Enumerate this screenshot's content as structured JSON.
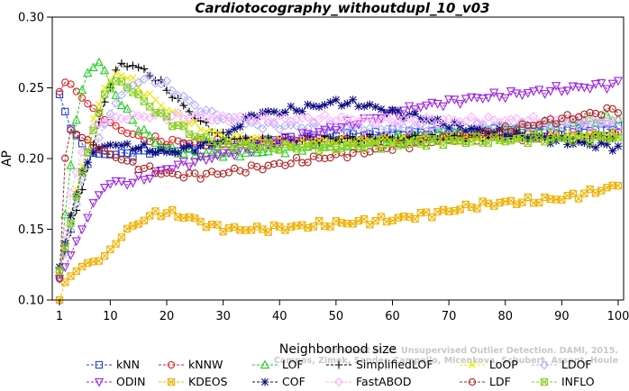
{
  "chart_data": {
    "type": "line",
    "title": "Cardiotocography_withoutdupl_10_v03",
    "xlabel": "Neighborhood size",
    "ylabel": "AP",
    "xlim": [
      1,
      100
    ],
    "ylim": [
      0.1,
      0.3
    ],
    "xticks": [
      1,
      10,
      20,
      30,
      40,
      50,
      60,
      70,
      80,
      90,
      100
    ],
    "yticks": [
      0.1,
      0.15,
      0.2,
      0.25,
      0.3
    ],
    "ytick_labels": [
      "0.10",
      "0.15",
      "0.20",
      "0.25",
      "0.30"
    ],
    "grid": false,
    "legend_position": "bottom",
    "watermark": [
      "Schubert et al. Unsupervised Outlier Detection. DAMI, 2015.",
      "Campos, Zimek, Sander, Campello, Micenkova, Schubert, Assent, Houle"
    ],
    "series": [
      {
        "name": "kNN",
        "color": "#1f3fd8",
        "marker": "square",
        "knots": [
          [
            1,
            0.245
          ],
          [
            2,
            0.233
          ],
          [
            3,
            0.222
          ],
          [
            5,
            0.21
          ],
          [
            6,
            0.205
          ],
          [
            8,
            0.203
          ],
          [
            10,
            0.203
          ],
          [
            15,
            0.204
          ],
          [
            20,
            0.206
          ],
          [
            30,
            0.21
          ],
          [
            40,
            0.213
          ],
          [
            50,
            0.216
          ],
          [
            60,
            0.218
          ],
          [
            70,
            0.219
          ],
          [
            80,
            0.22
          ],
          [
            90,
            0.221
          ],
          [
            100,
            0.222
          ]
        ]
      },
      {
        "name": "kNNW",
        "color": "#e02020",
        "marker": "circle",
        "knots": [
          [
            1,
            0.248
          ],
          [
            2,
            0.254
          ],
          [
            3,
            0.252
          ],
          [
            5,
            0.243
          ],
          [
            7,
            0.235
          ],
          [
            10,
            0.225
          ],
          [
            13,
            0.218
          ],
          [
            16,
            0.214
          ],
          [
            20,
            0.212
          ],
          [
            30,
            0.211
          ],
          [
            40,
            0.212
          ],
          [
            50,
            0.213
          ],
          [
            60,
            0.214
          ],
          [
            70,
            0.215
          ],
          [
            80,
            0.215
          ],
          [
            90,
            0.216
          ],
          [
            100,
            0.217
          ]
        ]
      },
      {
        "name": "LOF",
        "color": "#22cc22",
        "marker": "triangle-up",
        "knots": [
          [
            1,
            0.118
          ],
          [
            2,
            0.16
          ],
          [
            3,
            0.195
          ],
          [
            4,
            0.228
          ],
          [
            5,
            0.248
          ],
          [
            6,
            0.26
          ],
          [
            7,
            0.265
          ],
          [
            8,
            0.268
          ],
          [
            9,
            0.262
          ],
          [
            10,
            0.252
          ],
          [
            12,
            0.238
          ],
          [
            15,
            0.222
          ],
          [
            18,
            0.212
          ],
          [
            20,
            0.207
          ],
          [
            25,
            0.203
          ],
          [
            30,
            0.203
          ],
          [
            40,
            0.206
          ],
          [
            50,
            0.21
          ],
          [
            60,
            0.214
          ],
          [
            70,
            0.218
          ],
          [
            80,
            0.221
          ],
          [
            90,
            0.225
          ],
          [
            100,
            0.229
          ]
        ]
      },
      {
        "name": "SimplifiedLOF",
        "color": "#000000",
        "marker": "plus",
        "knots": [
          [
            1,
            0.122
          ],
          [
            3,
            0.148
          ],
          [
            5,
            0.178
          ],
          [
            7,
            0.21
          ],
          [
            9,
            0.24
          ],
          [
            11,
            0.262
          ],
          [
            12,
            0.267
          ],
          [
            14,
            0.266
          ],
          [
            17,
            0.26
          ],
          [
            20,
            0.249
          ],
          [
            23,
            0.237
          ],
          [
            26,
            0.226
          ],
          [
            30,
            0.216
          ],
          [
            35,
            0.213
          ],
          [
            40,
            0.213
          ],
          [
            50,
            0.214
          ],
          [
            60,
            0.214
          ],
          [
            70,
            0.215
          ],
          [
            80,
            0.215
          ],
          [
            90,
            0.215
          ],
          [
            100,
            0.216
          ]
        ]
      },
      {
        "name": "LoOP",
        "color": "#e8e800",
        "marker": "x",
        "knots": [
          [
            1,
            0.12
          ],
          [
            3,
            0.16
          ],
          [
            5,
            0.195
          ],
          [
            7,
            0.228
          ],
          [
            9,
            0.25
          ],
          [
            11,
            0.26
          ],
          [
            13,
            0.258
          ],
          [
            16,
            0.247
          ],
          [
            20,
            0.235
          ],
          [
            25,
            0.223
          ],
          [
            30,
            0.216
          ],
          [
            40,
            0.212
          ],
          [
            50,
            0.212
          ],
          [
            60,
            0.213
          ],
          [
            70,
            0.214
          ],
          [
            80,
            0.215
          ],
          [
            90,
            0.216
          ],
          [
            100,
            0.217
          ]
        ]
      },
      {
        "name": "LDOF",
        "color": "#b0b0ff",
        "marker": "diamond",
        "knots": [
          [
            1,
            0.115
          ],
          [
            3,
            0.15
          ],
          [
            5,
            0.185
          ],
          [
            8,
            0.215
          ],
          [
            11,
            0.24
          ],
          [
            14,
            0.253
          ],
          [
            17,
            0.257
          ],
          [
            20,
            0.252
          ],
          [
            23,
            0.243
          ],
          [
            26,
            0.235
          ],
          [
            30,
            0.228
          ],
          [
            35,
            0.224
          ],
          [
            40,
            0.223
          ],
          [
            50,
            0.222
          ],
          [
            60,
            0.222
          ],
          [
            70,
            0.222
          ],
          [
            80,
            0.223
          ],
          [
            90,
            0.223
          ],
          [
            100,
            0.224
          ]
        ]
      },
      {
        "name": "ODIN",
        "color": "#9b22e0",
        "marker": "triangle-down",
        "knots": [
          [
            1,
            0.115
          ],
          [
            3,
            0.132
          ],
          [
            5,
            0.15
          ],
          [
            7,
            0.168
          ],
          [
            9,
            0.18
          ],
          [
            11,
            0.184
          ],
          [
            13,
            0.183
          ],
          [
            16,
            0.186
          ],
          [
            20,
            0.193
          ],
          [
            25,
            0.198
          ],
          [
            30,
            0.203
          ],
          [
            35,
            0.207
          ],
          [
            40,
            0.212
          ],
          [
            45,
            0.217
          ],
          [
            50,
            0.222
          ],
          [
            55,
            0.227
          ],
          [
            60,
            0.232
          ],
          [
            65,
            0.237
          ],
          [
            70,
            0.24
          ],
          [
            75,
            0.243
          ],
          [
            80,
            0.245
          ],
          [
            85,
            0.247
          ],
          [
            90,
            0.249
          ],
          [
            95,
            0.251
          ],
          [
            100,
            0.253
          ]
        ]
      },
      {
        "name": "KDEOS",
        "color": "#f0b000",
        "marker": "square-x",
        "knots": [
          [
            1,
            0.1
          ],
          [
            2,
            0.112
          ],
          [
            4,
            0.121
          ],
          [
            6,
            0.126
          ],
          [
            8,
            0.128
          ],
          [
            10,
            0.135
          ],
          [
            12,
            0.145
          ],
          [
            14,
            0.152
          ],
          [
            16,
            0.157
          ],
          [
            18,
            0.161
          ],
          [
            20,
            0.162
          ],
          [
            22,
            0.16
          ],
          [
            25,
            0.157
          ],
          [
            28,
            0.152
          ],
          [
            32,
            0.15
          ],
          [
            36,
            0.15
          ],
          [
            40,
            0.151
          ],
          [
            50,
            0.154
          ],
          [
            60,
            0.157
          ],
          [
            70,
            0.163
          ],
          [
            75,
            0.167
          ],
          [
            80,
            0.169
          ],
          [
            85,
            0.17
          ],
          [
            90,
            0.172
          ],
          [
            95,
            0.176
          ],
          [
            100,
            0.181
          ]
        ]
      },
      {
        "name": "COF",
        "color": "#0a0a80",
        "marker": "star",
        "knots": [
          [
            1,
            0.123
          ],
          [
            2,
            0.14
          ],
          [
            3,
            0.16
          ],
          [
            5,
            0.19
          ],
          [
            7,
            0.205
          ],
          [
            10,
            0.21
          ],
          [
            15,
            0.208
          ],
          [
            20,
            0.204
          ],
          [
            25,
            0.208
          ],
          [
            30,
            0.213
          ],
          [
            33,
            0.225
          ],
          [
            36,
            0.232
          ],
          [
            40,
            0.233
          ],
          [
            45,
            0.236
          ],
          [
            50,
            0.24
          ],
          [
            55,
            0.238
          ],
          [
            60,
            0.233
          ],
          [
            65,
            0.229
          ],
          [
            70,
            0.224
          ],
          [
            75,
            0.22
          ],
          [
            80,
            0.218
          ],
          [
            85,
            0.215
          ],
          [
            90,
            0.212
          ],
          [
            95,
            0.21
          ],
          [
            100,
            0.208
          ]
        ]
      },
      {
        "name": "FastABOD",
        "color": "#ffb0ff",
        "marker": "diamond",
        "knots": [
          [
            1,
            0.12
          ],
          [
            3,
            0.175
          ],
          [
            5,
            0.205
          ],
          [
            7,
            0.222
          ],
          [
            10,
            0.228
          ],
          [
            15,
            0.23
          ],
          [
            20,
            0.23
          ],
          [
            30,
            0.229
          ],
          [
            40,
            0.228
          ],
          [
            50,
            0.228
          ],
          [
            60,
            0.227
          ],
          [
            70,
            0.227
          ],
          [
            80,
            0.227
          ],
          [
            90,
            0.227
          ],
          [
            100,
            0.227
          ]
        ]
      },
      {
        "name": "LDF",
        "color": "#b02020",
        "marker": "circle",
        "knots": [
          [
            1,
            0.115
          ],
          [
            2,
            0.2
          ],
          [
            3,
            0.22
          ],
          [
            5,
            0.215
          ],
          [
            8,
            0.207
          ],
          [
            11,
            0.201
          ],
          [
            14,
            0.196
          ],
          [
            17,
            0.192
          ],
          [
            20,
            0.189
          ],
          [
            25,
            0.188
          ],
          [
            30,
            0.19
          ],
          [
            40,
            0.196
          ],
          [
            50,
            0.202
          ],
          [
            60,
            0.208
          ],
          [
            70,
            0.214
          ],
          [
            80,
            0.22
          ],
          [
            90,
            0.228
          ],
          [
            100,
            0.235
          ]
        ]
      },
      {
        "name": "INFLO",
        "color": "#88d020",
        "marker": "square-x",
        "knots": [
          [
            1,
            0.12
          ],
          [
            3,
            0.155
          ],
          [
            5,
            0.19
          ],
          [
            7,
            0.22
          ],
          [
            9,
            0.245
          ],
          [
            11,
            0.255
          ],
          [
            13,
            0.252
          ],
          [
            16,
            0.24
          ],
          [
            20,
            0.228
          ],
          [
            25,
            0.216
          ],
          [
            30,
            0.21
          ],
          [
            40,
            0.208
          ],
          [
            50,
            0.208
          ],
          [
            60,
            0.21
          ],
          [
            70,
            0.212
          ],
          [
            80,
            0.213
          ],
          [
            90,
            0.214
          ],
          [
            100,
            0.215
          ]
        ]
      }
    ]
  }
}
